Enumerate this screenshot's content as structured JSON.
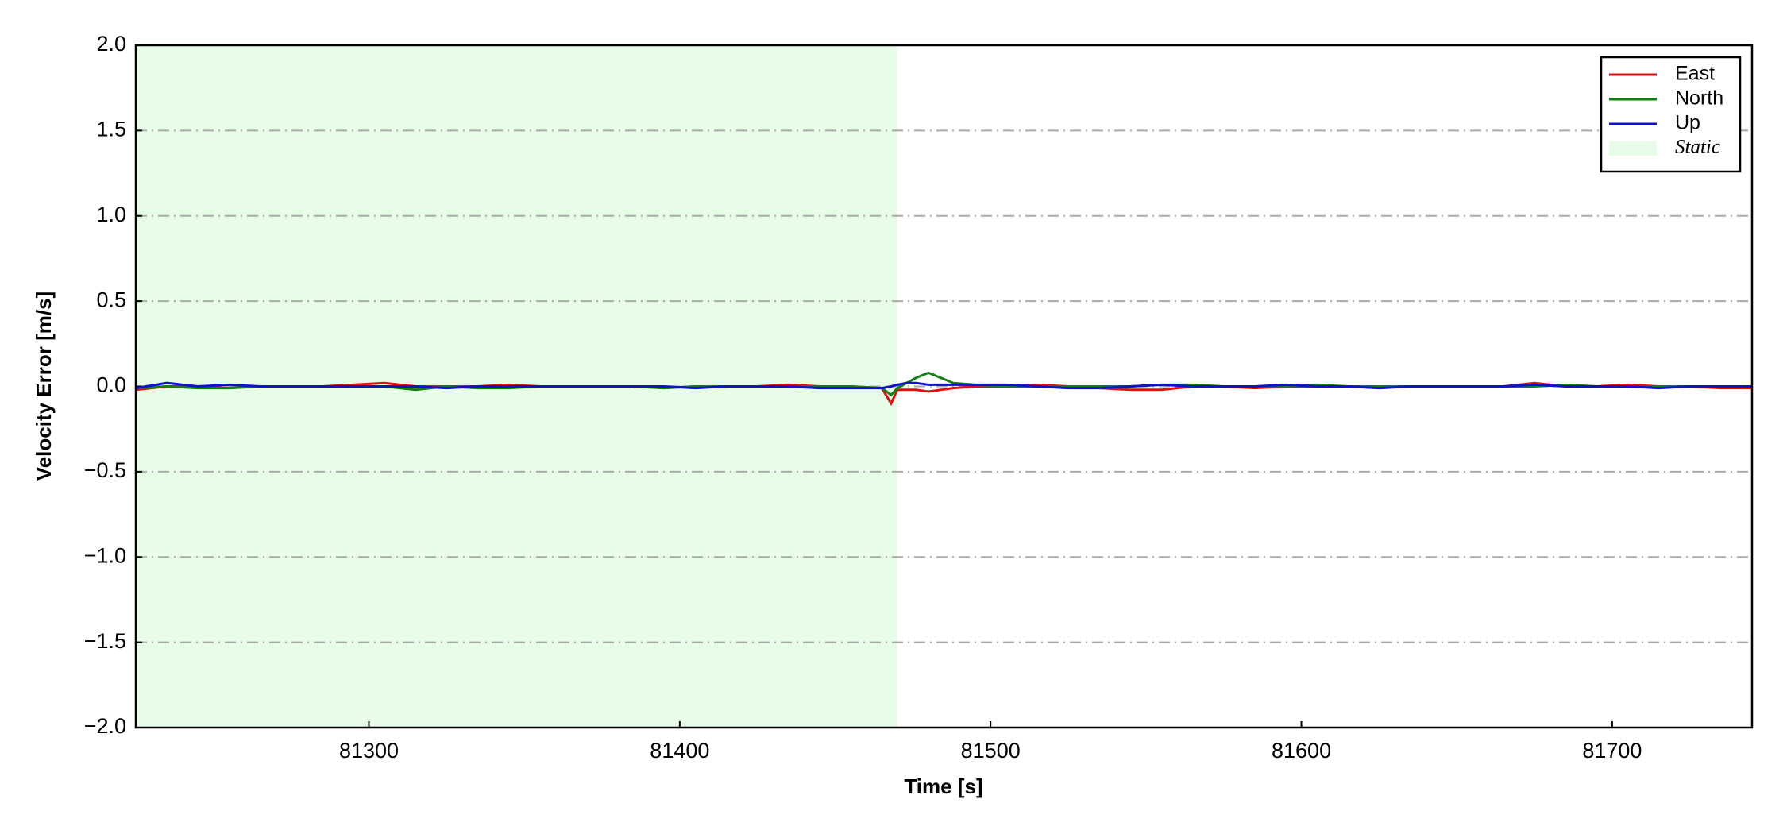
{
  "chart_data": {
    "type": "line",
    "xlabel": "Time [s]",
    "ylabel": "Velocity Error [m/s]",
    "x": [
      81225,
      81235,
      81245,
      81255,
      81265,
      81275,
      81285,
      81295,
      81305,
      81315,
      81325,
      81335,
      81345,
      81355,
      81365,
      81375,
      81385,
      81395,
      81405,
      81415,
      81425,
      81435,
      81445,
      81455,
      81465,
      81468,
      81470,
      81473,
      81476,
      81480,
      81484,
      81488,
      81495,
      81505,
      81515,
      81525,
      81535,
      81545,
      81555,
      81565,
      81575,
      81585,
      81595,
      81605,
      81615,
      81625,
      81635,
      81645,
      81655,
      81665,
      81675,
      81685,
      81695,
      81705,
      81715,
      81725,
      81735,
      81745
    ],
    "series": [
      {
        "name": "East",
        "color": "#e01010",
        "values": [
          -0.02,
          0,
          0,
          -0.01,
          0,
          0,
          0,
          0.01,
          0.02,
          0,
          0,
          0,
          0.01,
          0,
          0,
          0,
          0,
          -0.01,
          0,
          0,
          0,
          0.01,
          0,
          0,
          -0.01,
          -0.1,
          -0.02,
          -0.02,
          -0.02,
          -0.03,
          -0.02,
          -0.01,
          0,
          0,
          0.01,
          0,
          -0.01,
          -0.02,
          -0.02,
          0,
          0,
          -0.01,
          0,
          0,
          0,
          -0.01,
          0,
          0,
          0,
          0,
          0.02,
          0,
          0,
          0.01,
          0,
          0,
          -0.01,
          -0.01
        ]
      },
      {
        "name": "North",
        "color": "#108010",
        "values": [
          -0.01,
          0,
          -0.01,
          -0.01,
          0,
          0,
          0,
          0,
          0,
          -0.02,
          0,
          -0.01,
          -0.01,
          0,
          0,
          0,
          0,
          -0.01,
          0,
          0,
          0,
          0,
          0,
          0,
          -0.01,
          -0.05,
          -0.01,
          0.02,
          0.05,
          0.08,
          0.05,
          0.02,
          0.01,
          0,
          0,
          0,
          0,
          0,
          0.01,
          0.01,
          0,
          0,
          0,
          0.01,
          0,
          0,
          0,
          0,
          0,
          0,
          0,
          0.01,
          0,
          0,
          0,
          0,
          0,
          0
        ]
      },
      {
        "name": "Up",
        "color": "#1010d0",
        "values": [
          -0.01,
          0.02,
          0,
          0.01,
          0,
          0,
          0,
          0,
          0,
          0,
          -0.01,
          0,
          0,
          0,
          0,
          0,
          0,
          0,
          -0.01,
          0,
          0,
          0,
          -0.01,
          -0.01,
          -0.01,
          0,
          0.01,
          0.02,
          0.02,
          0.01,
          0.01,
          0.01,
          0.01,
          0.01,
          0,
          -0.01,
          -0.01,
          0,
          0.01,
          0,
          0,
          0,
          0.01,
          0,
          0,
          -0.01,
          0,
          0,
          0,
          0,
          0.01,
          0,
          0,
          0,
          -0.01,
          0,
          0,
          0
        ]
      }
    ],
    "shaded": {
      "name": "Static",
      "color": "#e8fde8",
      "x": [
        81225,
        81470
      ]
    },
    "xlim": [
      81225,
      81745
    ],
    "ylim": [
      -2,
      2
    ],
    "xticks": [
      81300,
      81400,
      81500,
      81600,
      81700
    ],
    "yticks": [
      {
        "value": -2,
        "label": "−2.0"
      },
      {
        "value": -1.5,
        "label": "−1.5"
      },
      {
        "value": -1,
        "label": "−1.0"
      },
      {
        "value": -0.5,
        "label": "−0.5"
      },
      {
        "value": 0,
        "label": "0.0"
      },
      {
        "value": 0.5,
        "label": "0.5"
      },
      {
        "value": 1,
        "label": "1.0"
      },
      {
        "value": 1.5,
        "label": "1.5"
      },
      {
        "value": 2,
        "label": "2.0"
      }
    ],
    "grid": true,
    "legend": "upper right"
  }
}
